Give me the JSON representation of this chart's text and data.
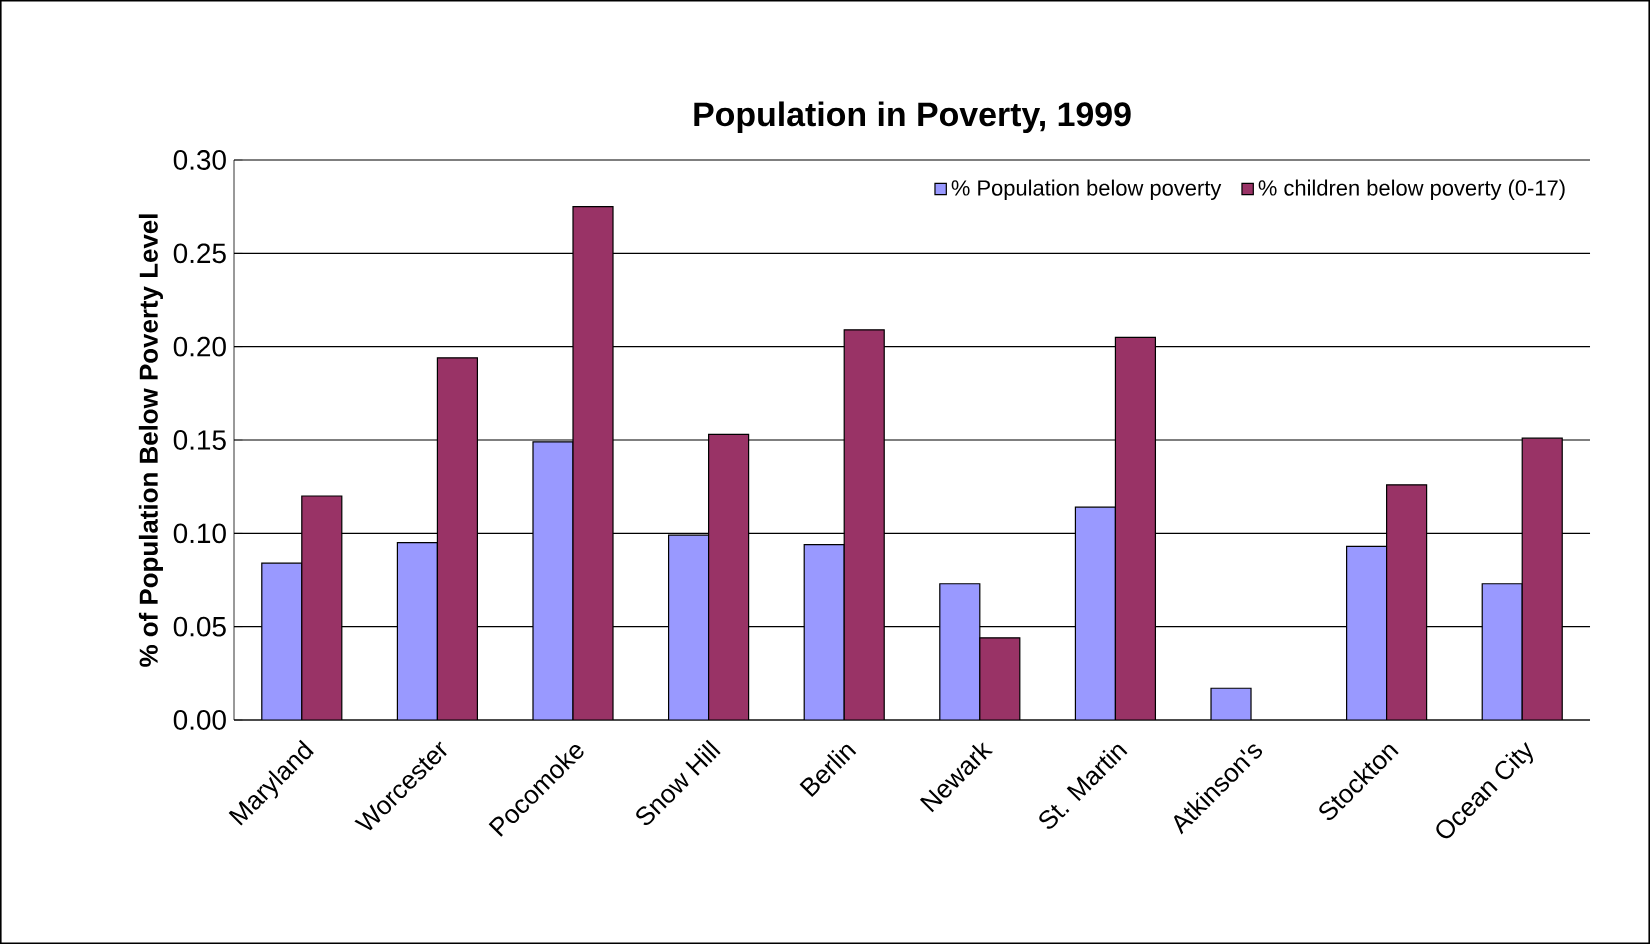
{
  "chart_data": {
    "type": "bar",
    "title": "Population in Poverty, 1999",
    "ylabel": "% of Population Below Poverty Level",
    "categories": [
      "Maryland",
      "Worcester",
      "Pocomoke",
      "Snow Hill",
      "Berlin",
      "Newark",
      "St. Martin",
      "Atkinson's",
      "Stockton",
      "Ocean City"
    ],
    "series": [
      {
        "name": "% Population below poverty",
        "color": "#9999ff",
        "values": [
          0.084,
          0.095,
          0.149,
          0.099,
          0.094,
          0.073,
          0.114,
          0.017,
          0.093,
          0.073
        ]
      },
      {
        "name": "% children below poverty (0-17)",
        "color": "#993366",
        "values": [
          0.12,
          0.194,
          0.275,
          0.153,
          0.209,
          0.044,
          0.205,
          null,
          0.126,
          0.151
        ]
      }
    ],
    "ylim": [
      0,
      0.3
    ],
    "yticks": [
      {
        "value": 0,
        "label": "0.00"
      },
      {
        "value": 0.05,
        "label": "0.05"
      },
      {
        "value": 0.1,
        "label": "0.10"
      },
      {
        "value": 0.15,
        "label": "0.15"
      },
      {
        "value": 0.2,
        "label": "0.20"
      },
      {
        "value": 0.25,
        "label": "0.25"
      },
      {
        "value": 0.3,
        "label": "0.30"
      }
    ],
    "grid": "y",
    "legend": "top right"
  }
}
